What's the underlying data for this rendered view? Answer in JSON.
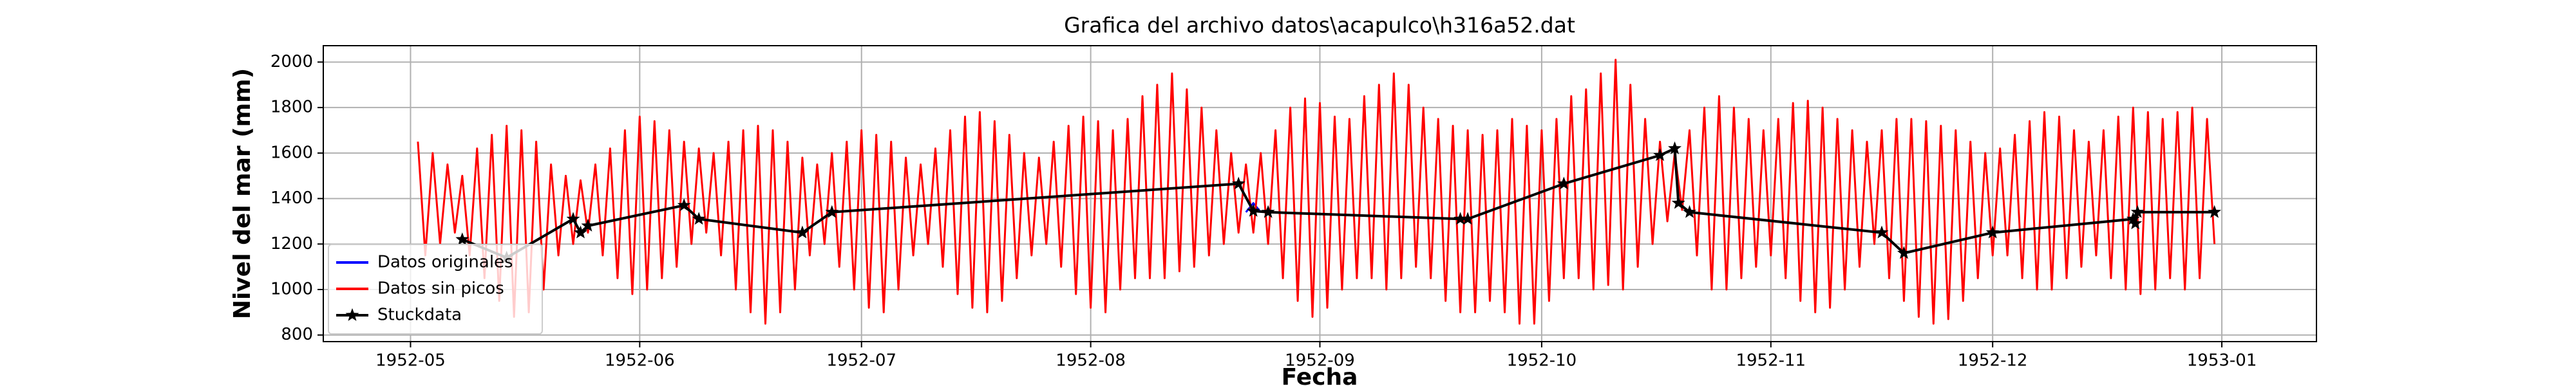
{
  "chart_data": {
    "type": "line",
    "title": "Grafica del archivo datos\\acapulco\\h316a52.dat",
    "xlabel": "Fecha",
    "ylabel": "Nivel del mar (mm)",
    "xlim": [
      -11.8,
      257.8
    ],
    "ylim": [
      771,
      2072
    ],
    "xticks": [
      {
        "value": 0,
        "label": "1952-05"
      },
      {
        "value": 31,
        "label": "1952-06"
      },
      {
        "value": 61,
        "label": "1952-07"
      },
      {
        "value": 92,
        "label": "1952-08"
      },
      {
        "value": 123,
        "label": "1952-09"
      },
      {
        "value": 153,
        "label": "1952-10"
      },
      {
        "value": 184,
        "label": "1952-11"
      },
      {
        "value": 214,
        "label": "1952-12"
      },
      {
        "value": 245,
        "label": "1953-01"
      }
    ],
    "yticks": [
      800,
      1000,
      1200,
      1400,
      1600,
      1800,
      2000
    ],
    "grid": true,
    "legend": "lower left",
    "series": [
      {
        "name": "Datos originales",
        "color": "#0000ff",
        "x": [
          113,
          114,
          115
        ],
        "values": [
          1340,
          1380,
          1340
        ]
      },
      {
        "name": "Datos sin picos",
        "color": "#ff0000",
        "x": [
          1,
          2,
          3,
          4,
          5,
          6,
          7,
          8,
          9,
          10,
          11,
          12,
          13,
          14,
          15,
          16,
          17,
          18,
          19,
          20,
          21,
          22,
          23,
          24,
          25,
          26,
          27,
          28,
          29,
          30,
          31,
          32,
          33,
          34,
          35,
          36,
          37,
          38,
          39,
          40,
          41,
          42,
          43,
          44,
          45,
          46,
          47,
          48,
          49,
          50,
          51,
          52,
          53,
          54,
          55,
          56,
          57,
          58,
          59,
          60,
          61,
          62,
          63,
          64,
          65,
          66,
          67,
          68,
          69,
          70,
          71,
          72,
          73,
          74,
          75,
          76,
          77,
          78,
          79,
          80,
          81,
          82,
          83,
          84,
          85,
          86,
          87,
          88,
          89,
          90,
          91,
          92,
          93,
          94,
          95,
          96,
          97,
          98,
          99,
          100,
          101,
          102,
          103,
          104,
          105,
          106,
          107,
          108,
          109,
          110,
          111,
          112,
          113,
          114,
          115,
          116,
          117,
          118,
          119,
          120,
          121,
          122,
          123,
          124,
          125,
          126,
          127,
          128,
          129,
          130,
          131,
          132,
          133,
          134,
          135,
          136,
          137,
          138,
          139,
          140,
          141,
          142,
          143,
          144,
          145,
          146,
          147,
          148,
          149,
          150,
          151,
          152,
          153,
          154,
          155,
          156,
          157,
          158,
          159,
          160,
          161,
          162,
          163,
          164,
          165,
          166,
          167,
          168,
          169,
          170,
          171,
          172,
          173,
          174,
          175,
          176,
          177,
          178,
          179,
          180,
          181,
          182,
          183,
          184,
          185,
          186,
          187,
          188,
          189,
          190,
          191,
          192,
          193,
          194,
          195,
          196,
          197,
          198,
          199,
          200,
          201,
          202,
          203,
          204,
          205,
          206,
          207,
          208,
          209,
          210,
          211,
          212,
          213,
          214,
          215,
          216,
          217,
          218,
          219,
          220,
          221,
          222,
          223,
          224,
          225,
          226,
          227,
          228,
          229,
          230,
          231,
          232,
          233,
          234,
          235,
          236,
          237,
          238,
          239,
          240,
          241,
          242,
          243,
          244
        ],
        "values": [
          1650,
          1150,
          1600,
          1200,
          1550,
          1250,
          1500,
          1150,
          1620,
          1050,
          1680,
          950,
          1720,
          880,
          1700,
          900,
          1650,
          1000,
          1550,
          1150,
          1500,
          1200,
          1480,
          1250,
          1550,
          1150,
          1620,
          1050,
          1700,
          980,
          1760,
          1000,
          1740,
          1050,
          1700,
          1100,
          1650,
          1200,
          1620,
          1250,
          1600,
          1150,
          1650,
          1000,
          1700,
          900,
          1720,
          850,
          1700,
          900,
          1650,
          1000,
          1580,
          1150,
          1550,
          1200,
          1600,
          1100,
          1650,
          1000,
          1700,
          920,
          1680,
          900,
          1650,
          1000,
          1580,
          1150,
          1550,
          1200,
          1620,
          1100,
          1700,
          980,
          1760,
          920,
          1780,
          900,
          1740,
          950,
          1680,
          1050,
          1600,
          1150,
          1580,
          1200,
          1650,
          1100,
          1720,
          980,
          1760,
          920,
          1740,
          900,
          1700,
          1000,
          1750,
          1050,
          1850,
          1050,
          1900,
          1050,
          1950,
          1080,
          1880,
          1100,
          1800,
          1150,
          1700,
          1200,
          1600,
          1250,
          1550,
          1250,
          1600,
          1200,
          1700,
          1050,
          1800,
          950,
          1840,
          880,
          1820,
          920,
          1760,
          1000,
          1750,
          1050,
          1850,
          1050,
          1900,
          1000,
          1950,
          1050,
          1900,
          1100,
          1800,
          1050,
          1750,
          950,
          1720,
          900,
          1700,
          900,
          1680,
          950,
          1700,
          900,
          1750,
          850,
          1720,
          850,
          1700,
          950,
          1750,
          1050,
          1850,
          1050,
          1880,
          1000,
          1950,
          1020,
          2010,
          1000,
          1900,
          1100,
          1750,
          1200,
          1650,
          1300,
          1600,
          1350,
          1700,
          1150,
          1800,
          1000,
          1850,
          1000,
          1800,
          1050,
          1750,
          1100,
          1700,
          1150,
          1750,
          1050,
          1820,
          950,
          1830,
          900,
          1800,
          920,
          1750,
          1000,
          1700,
          1100,
          1650,
          1200,
          1700,
          1050,
          1750,
          950,
          1750,
          880,
          1740,
          850,
          1720,
          870,
          1700,
          950,
          1650,
          1050,
          1600,
          1150,
          1620,
          1150,
          1680,
          1050,
          1740,
          1000,
          1780,
          1000,
          1760,
          1050,
          1700,
          1100,
          1650,
          1150,
          1700,
          1050,
          1760,
          1000,
          1800,
          980,
          1780,
          1000,
          1750,
          1050,
          1780,
          1000,
          1800,
          1050,
          1750,
          1200
        ]
      },
      {
        "name": "Stuckdata",
        "color": "#000000",
        "marker": "star",
        "x": [
          7,
          13,
          22,
          23,
          24,
          37,
          39,
          53,
          57,
          112,
          114,
          116,
          142,
          143,
          156,
          169,
          171,
          171.5,
          173,
          199,
          202,
          214,
          233,
          233.3,
          233.6,
          244
        ],
        "values": [
          1220,
          1140,
          1310,
          1250,
          1280,
          1370,
          1310,
          1250,
          1340,
          1465,
          1345,
          1340,
          1310,
          1310,
          1465,
          1590,
          1620,
          1380,
          1340,
          1250,
          1160,
          1250,
          1310,
          1290,
          1340,
          1340
        ]
      }
    ]
  }
}
